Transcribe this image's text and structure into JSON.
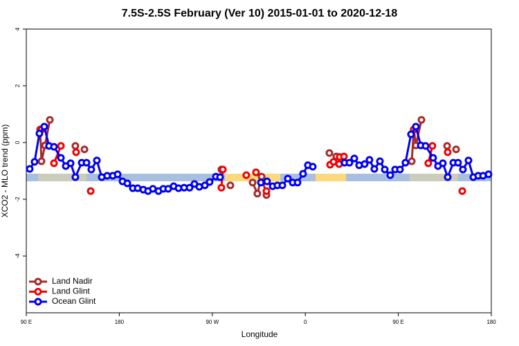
{
  "chart_data": {
    "type": "line",
    "title": "7.5S-2.5S February (Ver 10)   2015-01-01 to 2020-12-18",
    "x_label": "Longitude",
    "y_label": "XCO2 - MLO trend (ppm)",
    "xlim": [
      90,
      540
    ],
    "xticks": [
      {
        "value": 90,
        "label": "90 E"
      },
      {
        "value": 180,
        "label": "180"
      },
      {
        "value": 270,
        "label": "90 W"
      },
      {
        "value": 360,
        "label": "0"
      },
      {
        "value": 450,
        "label": "90 E"
      },
      {
        "value": 540,
        "label": "180"
      }
    ],
    "ylim": [
      -6,
      4
    ],
    "yticks": [
      -4,
      -2,
      0,
      2,
      4
    ],
    "legend": "bottom-left",
    "series": [
      {
        "name": "Land Nadir",
        "color": "#a52a2a",
        "x": [
          103.4,
          104.7,
          108.1,
          112.8,
          null,
          137.5,
          null,
          146.3,
          null,
          278.8,
          null,
          287.5,
          null,
          309,
          313.6,
          317.7,
          322.4,
          null,
          383.3,
          null,
          390,
          null,
          463,
          465,
          467,
          472.4,
          null,
          497.2,
          null,
          505.9
        ],
        "values": [
          0.46,
          -0.66,
          -0.1,
          0.8,
          null,
          -0.12,
          null,
          -0.24,
          null,
          -0.95,
          null,
          -1.51,
          null,
          -1.41,
          -1.8,
          -1.2,
          -1.85,
          null,
          -0.37,
          null,
          -0.49,
          null,
          -0.66,
          0.46,
          -0.1,
          0.8,
          null,
          -0.12,
          null,
          -0.24
        ]
      },
      {
        "name": "Land Glint",
        "color": "#ee0000",
        "x": [
          104.7,
          null,
          116.8,
          123.5,
          null,
          138.2,
          null,
          152.3,
          null,
          278.8,
          280.2,
          null,
          302.9,
          null,
          312.3,
          null,
          322.4,
          null,
          384,
          387.3,
          392.7,
          393.3,
          397.4,
          null,
          465,
          null,
          479,
          483,
          null,
          497.8,
          null,
          511.9
        ],
        "values": [
          0.46,
          null,
          -0.73,
          -0.12,
          null,
          -0.34,
          null,
          -1.71,
          null,
          -1.59,
          -0.95,
          null,
          -1.15,
          null,
          -1.05,
          null,
          -1.71,
          null,
          -0.78,
          -0.68,
          -0.76,
          -0.51,
          -0.49,
          null,
          0.46,
          null,
          -0.73,
          -0.12,
          null,
          -0.34,
          null,
          -1.71
        ]
      },
      {
        "name": "Ocean Glint",
        "color": "#0000ee",
        "x": [
          93.3,
          98,
          102.7,
          107.4,
          112,
          116.8,
          123.5,
          128.2,
          132.9,
          137.5,
          143.6,
          148.3,
          152.9,
          158.3,
          163,
          168.3,
          173.7,
          178.4,
          183.1,
          187.8,
          193.1,
          197.8,
          203.2,
          207.8,
          212.5,
          217.9,
          222.6,
          227.3,
          232.6,
          237.3,
          242.7,
          248,
          252.7,
          257.4,
          262.8,
          267.4,
          273.5,
          277.5,
          null,
          317,
          323,
          328.4,
          333,
          337.8,
          343.1,
          347.8,
          352.5,
          357.8,
          362.5,
          367.2,
          null,
          398,
          402.7,
          407.4,
          412.1,
          417.4,
          422.1,
          426.8,
          432.2,
          436.9,
          442.2,
          446.9,
          451.6,
          456.9,
          462.3,
          467,
          471.7,
          476.4,
          483.7,
          488.4,
          493.1,
          497.8,
          503.2,
          507.8,
          512.5,
          517.9,
          522.6,
          527.3,
          532,
          537.3
        ],
        "values": [
          -0.93,
          -0.68,
          0.32,
          0.56,
          -0.12,
          -0.15,
          -0.54,
          -0.83,
          -0.73,
          -1.22,
          -0.71,
          -0.71,
          -0.95,
          -0.63,
          -1.22,
          -1.17,
          -1.17,
          -1.12,
          -1.37,
          -1.44,
          -1.61,
          -1.61,
          -1.66,
          -1.71,
          -1.63,
          -1.71,
          -1.63,
          -1.63,
          -1.54,
          -1.61,
          -1.59,
          -1.59,
          -1.46,
          -1.56,
          -1.51,
          -1.39,
          -1.2,
          -1.22,
          null,
          -1.41,
          -1.37,
          -1.54,
          -1.51,
          -1.51,
          -1.27,
          -1.41,
          -1.41,
          -1.1,
          -0.8,
          -0.85,
          null,
          -0.71,
          -0.71,
          -0.56,
          -0.8,
          -0.76,
          -0.61,
          -0.93,
          -0.66,
          -0.95,
          -1.15,
          -0.95,
          -0.95,
          -0.71,
          0.29,
          0.56,
          -0.1,
          -0.12,
          -0.54,
          -0.83,
          -0.73,
          -1.22,
          -0.71,
          -0.71,
          -0.95,
          -0.63,
          -1.22,
          -1.17,
          -1.17,
          -1.12
        ]
      }
    ]
  }
}
